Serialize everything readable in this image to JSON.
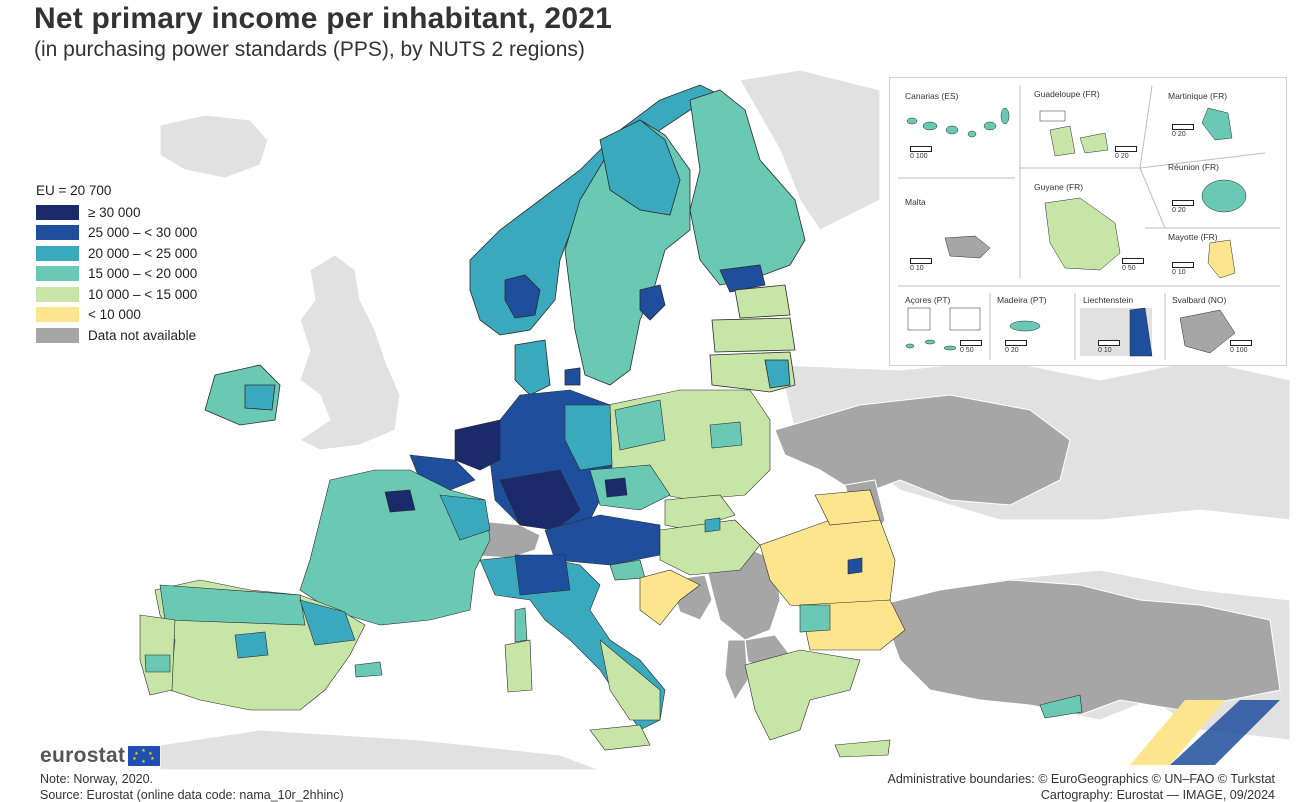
{
  "title": "Net primary income per inhabitant, 2021",
  "subtitle": "(in purchasing power standards (PPS), by NUTS 2 regions)",
  "legend": {
    "head": "EU = 20 700",
    "items": [
      {
        "label": "≥ 30 000",
        "color": "#1b2a6b"
      },
      {
        "label": "25 000 – < 30 000",
        "color": "#1f4f9c"
      },
      {
        "label": "20 000 – < 25 000",
        "color": "#3aa9bd"
      },
      {
        "label": "15 000 – < 20 000",
        "color": "#69c9b5"
      },
      {
        "label": "10 000 – < 15 000",
        "color": "#c7e5a6"
      },
      {
        "label": "< 10 000",
        "color": "#fde58e"
      },
      {
        "label": "Data not available",
        "color": "#a6a6a6"
      }
    ]
  },
  "colors": {
    "non_eu_land": "#e1e1e1",
    "candidate_grey": "#a6a6a6",
    "sea": "#ffffff"
  },
  "insets": [
    {
      "name": "Canarias (ES)",
      "scale": "0   100"
    },
    {
      "name": "Guadeloupe (FR)",
      "scale": "0   20"
    },
    {
      "name": "Martinique (FR)",
      "scale": "0   20"
    },
    {
      "name": "Réunion (FR)",
      "scale": "0   20"
    },
    {
      "name": "Malta",
      "scale": "0   10"
    },
    {
      "name": "Guyane (FR)",
      "scale": "0   50"
    },
    {
      "name": "Mayotte (FR)",
      "scale": "0   10"
    },
    {
      "name": "Açores (PT)",
      "scale": "0   50"
    },
    {
      "name": "Madeira (PT)",
      "scale": "0   20"
    },
    {
      "name": "Liechtenstein",
      "scale": "0   10"
    },
    {
      "name": "Svalbard (NO)",
      "scale": "0 100"
    }
  ],
  "footer": {
    "logo": "eurostat",
    "note": "Note: Norway, 2020.",
    "source": "Source: Eurostat (online data code: nama_10r_2hhinc)",
    "admin": "Administrative boundaries: © EuroGeographics © UN–FAO © Turkstat",
    "cartography": "Cartography: Eurostat — IMAGE, 09/2024"
  }
}
